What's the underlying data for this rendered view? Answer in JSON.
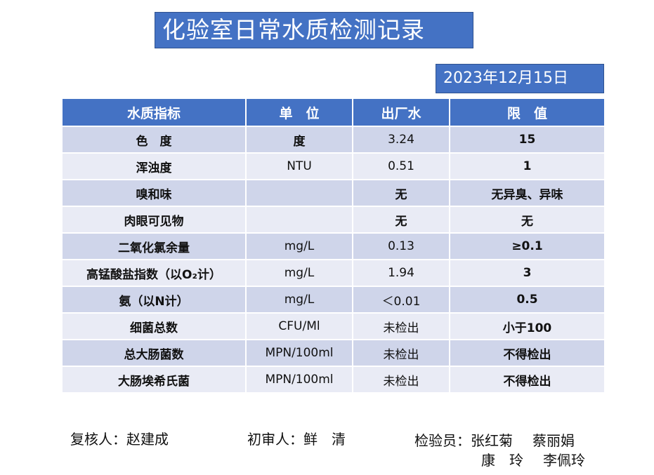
{
  "title": "化验室日常水质检测记录",
  "date": "2023年12月15日",
  "table": {
    "headers": [
      "水质指标",
      "单　位",
      "出厂水",
      "限　值"
    ],
    "rows": [
      {
        "name": "色　度",
        "unit": "度",
        "value": "3.24",
        "limit": "15"
      },
      {
        "name": "浑浊度",
        "unit": "NTU",
        "value": "0.51",
        "limit": "1"
      },
      {
        "name": "嗅和味",
        "unit": "",
        "value": "无",
        "limit": "无异臭、异味"
      },
      {
        "name": "肉眼可见物",
        "unit": "",
        "value": "无",
        "limit": "无"
      },
      {
        "name": "二氧化氯余量",
        "unit": "mg/L",
        "value": "0.13",
        "limit": "≥0.1"
      },
      {
        "name": "高锰酸盐指数（以O₂计）",
        "unit": "mg/L",
        "value": "1.94",
        "limit": "3"
      },
      {
        "name": "氨（以N计）",
        "unit": "mg/L",
        "value": "＜0.01",
        "limit": "0.5"
      },
      {
        "name": "细菌总数",
        "unit": "CFU/Ml",
        "value": "未检出",
        "limit": "小于100"
      },
      {
        "name": "总大肠菌数",
        "unit": "MPN/100ml",
        "value": "未检出",
        "limit": "不得检出"
      },
      {
        "name": "大肠埃希氏菌",
        "unit": "MPN/100ml",
        "value": "未检出",
        "limit": "不得检出"
      }
    ]
  },
  "footer": {
    "reviewer": "复核人：赵建成",
    "first_reviewer": "初审人：鲜　清",
    "inspectors_label": "检验员：",
    "inspector_1": "张红菊",
    "inspector_2": "蔡丽娟",
    "inspector_3": "康　玲",
    "inspector_4": "李佩玲"
  }
}
